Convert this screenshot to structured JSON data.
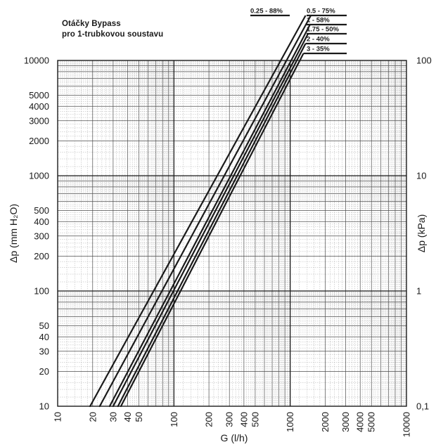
{
  "header": {
    "title_line1": "Otáčky Bypass",
    "title_line2": "pro 1-trubkovou soustavu"
  },
  "chart_data": {
    "type": "line",
    "x_scale": "log",
    "y_scale": "log",
    "grid": true,
    "xlabel": "G (l/h)",
    "ylabel": "Δp (mm H₂O)",
    "y2label": "Δp (kPa)",
    "xlim": [
      10,
      10000
    ],
    "ylim": [
      10,
      10000
    ],
    "x_ticks": [
      "10",
      "20",
      "30",
      "40",
      "50",
      "100",
      "200",
      "300",
      "400",
      "500",
      "1000",
      "2000",
      "3000",
      "4000",
      "5000",
      "10000"
    ],
    "y_ticks": [
      "10",
      "20",
      "30",
      "40",
      "50",
      "100",
      "200",
      "300",
      "400",
      "500",
      "1000",
      "2000",
      "3000",
      "4000",
      "5000",
      "10000"
    ],
    "y2_ticks": [
      "0,1",
      "1",
      "10",
      "100"
    ],
    "series": [
      {
        "name": "0.25 - 88%",
        "x": [
          19,
          830
        ],
        "y": [
          10,
          10000
        ]
      },
      {
        "name": "0.5 - 75%",
        "x": [
          23,
          930
        ],
        "y": [
          10,
          10000
        ]
      },
      {
        "name": "1 - 58%",
        "x": [
          28,
          1020
        ],
        "y": [
          10,
          10000
        ]
      },
      {
        "name": "1.75 - 50%",
        "x": [
          30,
          1080
        ],
        "y": [
          10,
          10000
        ]
      },
      {
        "name": "2 - 40%",
        "x": [
          33,
          1140
        ],
        "y": [
          10,
          10000
        ]
      },
      {
        "name": "3 - 35%",
        "x": [
          35,
          1210
        ],
        "y": [
          10,
          10000
        ]
      }
    ]
  }
}
